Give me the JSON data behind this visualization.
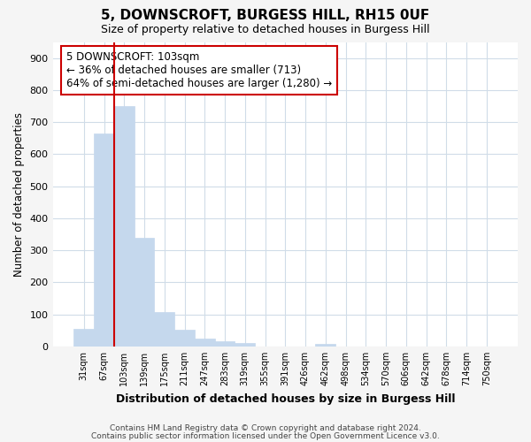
{
  "title": "5, DOWNSCROFT, BURGESS HILL, RH15 0UF",
  "subtitle": "Size of property relative to detached houses in Burgess Hill",
  "xlabel": "Distribution of detached houses by size in Burgess Hill",
  "ylabel": "Number of detached properties",
  "categories": [
    "31sqm",
    "67sqm",
    "103sqm",
    "139sqm",
    "175sqm",
    "211sqm",
    "247sqm",
    "283sqm",
    "319sqm",
    "355sqm",
    "391sqm",
    "426sqm",
    "462sqm",
    "498sqm",
    "534sqm",
    "570sqm",
    "606sqm",
    "642sqm",
    "678sqm",
    "714sqm",
    "750sqm"
  ],
  "values": [
    55,
    665,
    750,
    338,
    108,
    52,
    26,
    15,
    12,
    0,
    0,
    0,
    8,
    0,
    0,
    0,
    0,
    0,
    0,
    0,
    0
  ],
  "bar_color": "#c5d8ed",
  "bar_edge_color": "#c5d8ed",
  "vline_color": "#cc0000",
  "vline_position": 1.5,
  "annotation_text": "5 DOWNSCROFT: 103sqm\n← 36% of detached houses are smaller (713)\n64% of semi-detached houses are larger (1,280) →",
  "annotation_box_color": "#ffffff",
  "annotation_box_edge": "#cc0000",
  "ylim": [
    0,
    950
  ],
  "yticks": [
    0,
    100,
    200,
    300,
    400,
    500,
    600,
    700,
    800,
    900
  ],
  "footer1": "Contains HM Land Registry data © Crown copyright and database right 2024.",
  "footer2": "Contains public sector information licensed under the Open Government Licence v3.0.",
  "bg_color": "#f5f5f5",
  "plot_bg_color": "#ffffff",
  "grid_color": "#d0dce8"
}
